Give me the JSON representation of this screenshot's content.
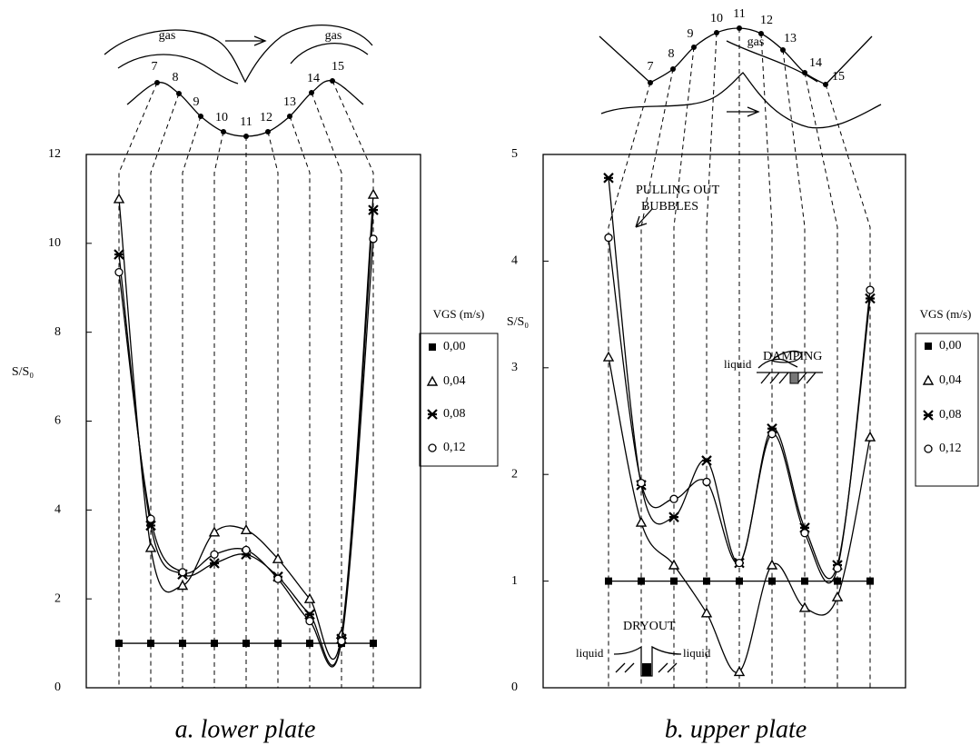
{
  "chart_data": [
    {
      "type": "line",
      "title": "a. lower plate",
      "y_label": "S/S₀",
      "categories": [
        "7",
        "8",
        "9",
        "10",
        "11",
        "12",
        "13",
        "14",
        "15"
      ],
      "ylim": [
        0,
        12
      ],
      "yticks": [
        0,
        2,
        4,
        6,
        8,
        10,
        12
      ],
      "legend": {
        "title": "VGS (m/s)",
        "position": "right"
      },
      "series": [
        {
          "name": "0,00",
          "marker": "square",
          "color": "#000000",
          "values": [
            1,
            1,
            1,
            1,
            1,
            1,
            1,
            1,
            1
          ]
        },
        {
          "name": "0,04",
          "marker": "triangle",
          "color": "#000000",
          "values": [
            11.0,
            3.15,
            2.3,
            3.5,
            3.55,
            2.9,
            2.0,
            1.2,
            11.1
          ]
        },
        {
          "name": "0,08",
          "marker": "asterisk",
          "color": "#000000",
          "values": [
            9.75,
            3.65,
            2.55,
            2.8,
            3.0,
            2.5,
            1.65,
            1.1,
            10.75
          ]
        },
        {
          "name": "0,12",
          "marker": "circle",
          "color": "#000000",
          "values": [
            9.35,
            3.8,
            2.6,
            3.0,
            3.1,
            2.45,
            1.5,
            1.05,
            10.1
          ]
        }
      ],
      "annotations": [
        "gas",
        "gas"
      ]
    },
    {
      "type": "line",
      "title": "b. upper plate",
      "y_label": "S/S₀",
      "categories": [
        "7",
        "8",
        "9",
        "10",
        "11",
        "12",
        "13",
        "14",
        "15"
      ],
      "ylim": [
        0,
        5
      ],
      "yticks": [
        0,
        1,
        2,
        3,
        4,
        5
      ],
      "legend": {
        "title": "VGS (m/s)",
        "position": "right"
      },
      "series": [
        {
          "name": "0,00",
          "marker": "square",
          "color": "#000000",
          "values": [
            1,
            1,
            1,
            1,
            1,
            1,
            1,
            1,
            1
          ]
        },
        {
          "name": "0,04",
          "marker": "triangle",
          "color": "#000000",
          "values": [
            3.1,
            1.55,
            1.15,
            0.7,
            0.15,
            1.15,
            0.75,
            0.85,
            2.35
          ]
        },
        {
          "name": "0,08",
          "marker": "asterisk",
          "color": "#000000",
          "values": [
            4.78,
            1.9,
            1.6,
            2.13,
            1.17,
            2.43,
            1.5,
            1.15,
            3.65
          ]
        },
        {
          "name": "0,12",
          "marker": "circle",
          "color": "#000000",
          "values": [
            4.22,
            1.92,
            1.77,
            1.93,
            1.17,
            2.38,
            1.45,
            1.12,
            3.73
          ]
        }
      ],
      "annotations": [
        "gas",
        "PULLING OUT",
        "BUBBLES",
        "DAMPING",
        "liquid",
        "DRYOUT",
        "liquid",
        "liquid"
      ]
    }
  ]
}
